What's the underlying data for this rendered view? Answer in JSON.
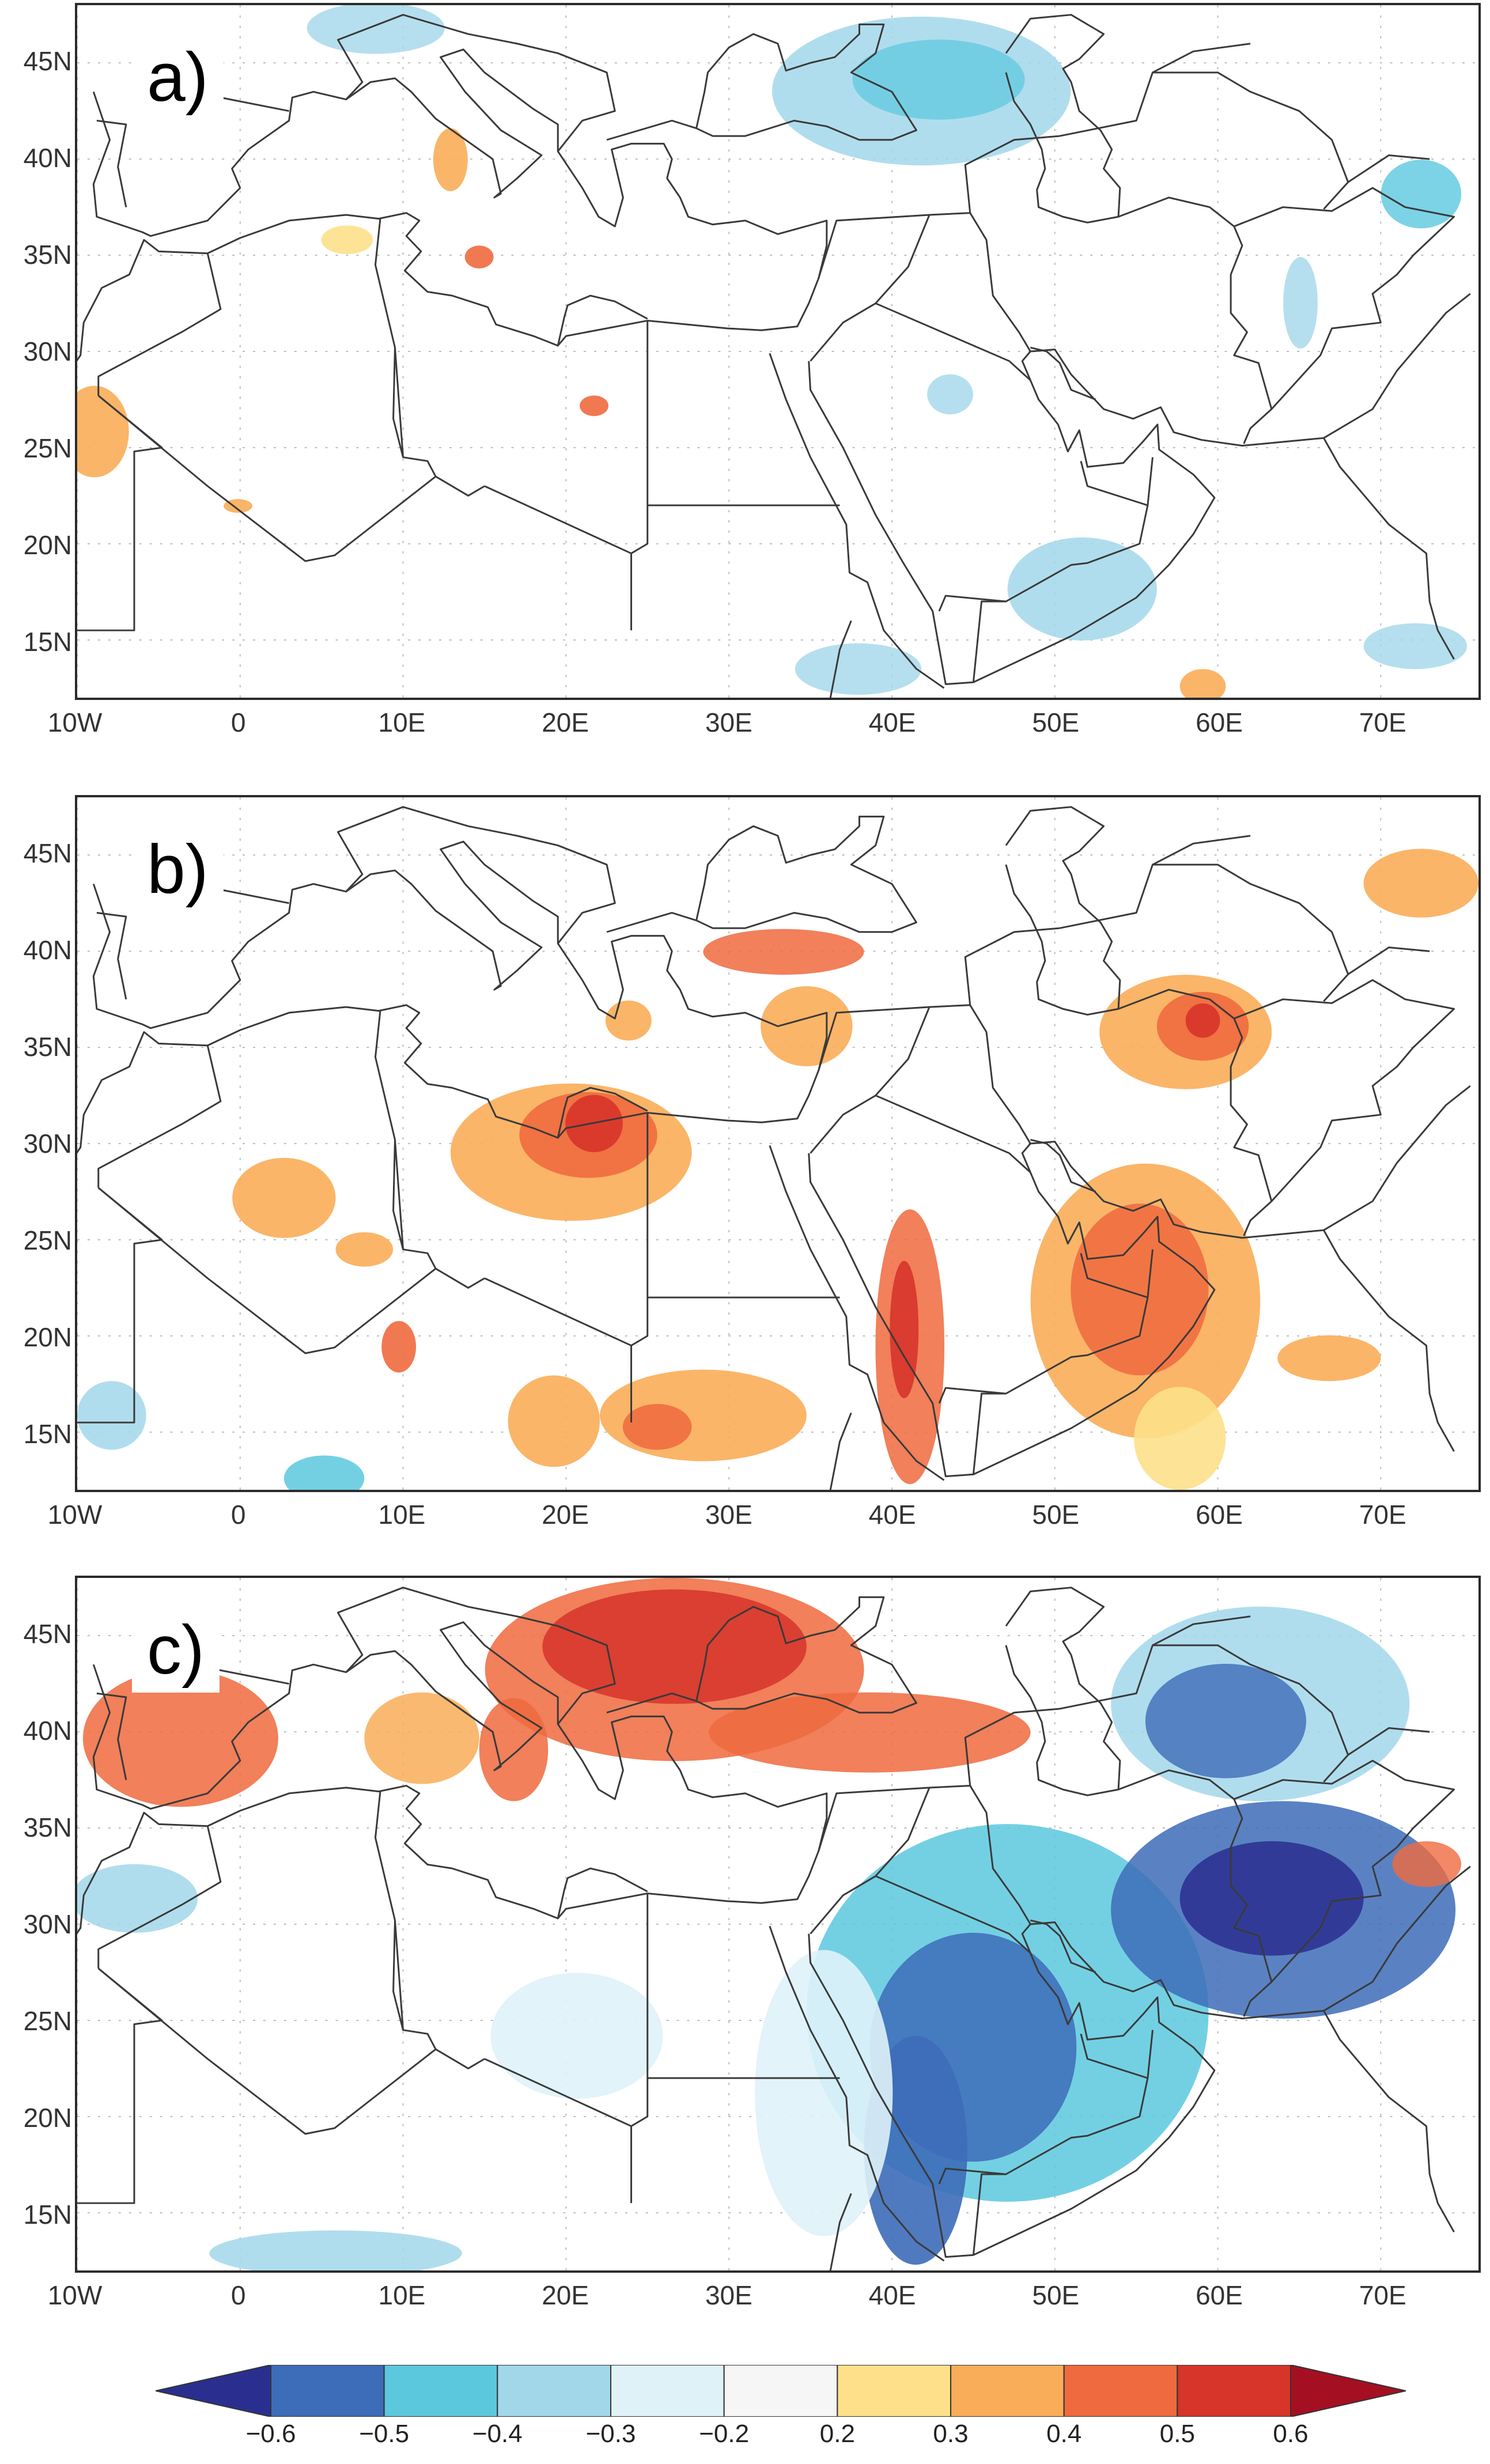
{
  "panels": [
    {
      "label": "a)",
      "pattern": "mixed-weak-change"
    },
    {
      "label": "b)",
      "pattern": "positive-change"
    },
    {
      "label": "c)",
      "pattern": "dipole-change"
    }
  ],
  "lat_labels": [
    "45N",
    "40N",
    "35N",
    "30N",
    "25N",
    "20N",
    "15N"
  ],
  "lon_labels": [
    "10W",
    "0",
    "10E",
    "20E",
    "30E",
    "40E",
    "50E",
    "60E",
    "70E"
  ],
  "colorbar": {
    "labels": [
      "-0.6",
      "-0.5",
      "-0.4",
      "-0.3",
      "-0.2",
      "0.2",
      "0.3",
      "0.4",
      "0.5",
      "0.6"
    ],
    "colors": [
      "#2a2f8f",
      "#3d6cb8",
      "#5bc8de",
      "#a2d7ea",
      "#dff2f8",
      "#f6f6f6",
      "#fde089",
      "#f9ad58",
      "#ef6a3e",
      "#d7342a",
      "#a50f22"
    ]
  },
  "map_style": {
    "coast_color": "#3a3a3a",
    "grid_color": "#bdbdbd"
  }
}
